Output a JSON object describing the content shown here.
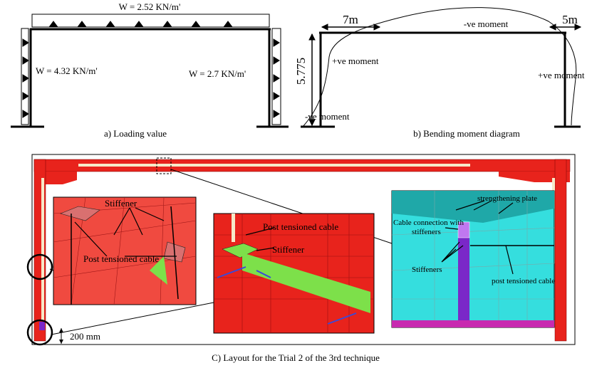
{
  "loading": {
    "top_load": "W = 2.52 KN/m'",
    "left_load": "W = 4.32 KN/m'",
    "right_load": "W = 2.7 KN/m'",
    "caption": "a) Loading value"
  },
  "moment": {
    "left_span": "7m",
    "right_span": "5m",
    "height": "5.775",
    "top_label": "-ve moment",
    "left_label": "+ve moment",
    "right_label": "+ve moment",
    "base_label": "-ve moment",
    "caption": "b) Bending moment diagram"
  },
  "layout": {
    "inset1": {
      "stiffener": "Stiffener",
      "cable": "Post tensioned cable"
    },
    "inset2": {
      "cable": "Post tensioned cable",
      "stiffener": "Stiffener"
    },
    "inset3": {
      "plate": "strengthening plate",
      "connection_line1": "Cable connection with",
      "connection_line2": "stiffeners",
      "stiffeners": "Stiffeners",
      "cable": "post tensioned cable"
    },
    "scale": "200 mm",
    "caption": "C) Layout for the Trial 2 of the 3rd technique"
  }
}
